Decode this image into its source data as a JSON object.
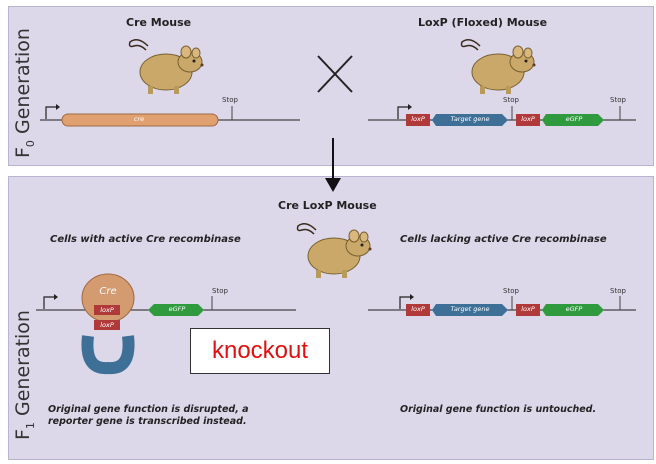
{
  "f0": {
    "generation_label": "F",
    "generation_sub": "0",
    "generation_word": "Generation",
    "cre_mouse_title": "Cre Mouse",
    "loxp_mouse_title": "LoxP (Floxed) Mouse",
    "cre_label": "cre",
    "stop_label": "Stop",
    "loxp_label": "loxP",
    "target_gene_label": "Target gene",
    "egfp_label": "eGFP"
  },
  "f1": {
    "generation_label": "F",
    "generation_sub": "1",
    "generation_word": "Generation",
    "title": "Cre LoxP Mouse",
    "left_heading": "Cells with active Cre recombinase",
    "right_heading": "Cells lacking active Cre recombinase",
    "cre_protein_label": "Cre",
    "loxp_label": "loxP",
    "egfp_label": "eGFP",
    "target_gene_label": "Target gene",
    "stop_label": "Stop",
    "left_note": "Original gene function is disrupted, a reporter gene is transcribed instead.",
    "right_note": "Original gene function is untouched."
  },
  "annotation": "knockout",
  "colors": {
    "panel": "#dcd8ea",
    "cre_bar": "#e0a070",
    "loxp": "#b03a3a",
    "target_gene": "#3d6f97",
    "egfp": "#2f9a3e",
    "annotation_text": "#e01010",
    "mouse_body": "#c9a86a"
  }
}
